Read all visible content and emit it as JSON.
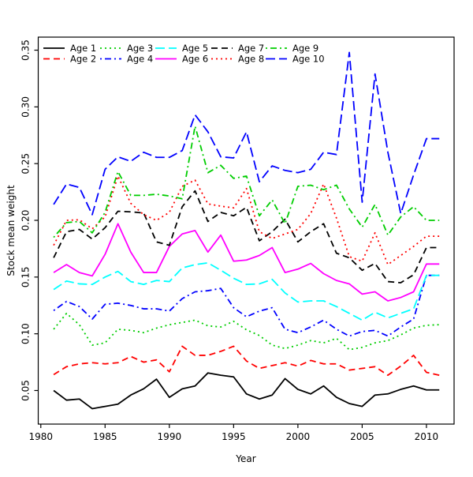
{
  "chart_data": {
    "type": "line",
    "title": "",
    "xlabel": "Year",
    "ylabel": "Stock mean weight",
    "x_ticks": [
      1980,
      1985,
      1990,
      1995,
      2000,
      2005,
      2010
    ],
    "y_tick_labels": [
      "0.05",
      "0.10",
      "0.15",
      "0.20",
      "0.25",
      "0.30",
      "0.35"
    ],
    "y_ticks": [
      0.05,
      0.1,
      0.15,
      0.2,
      0.25,
      0.3,
      0.35
    ],
    "xlim": [
      1979.8,
      2012.15
    ],
    "ylim": [
      0.0204,
      0.3615
    ],
    "grid": false,
    "legend_position": "top-left-inside, 2 rows x 5 columns",
    "x": [
      1981,
      1982,
      1983,
      1984,
      1985,
      1986,
      1987,
      1988,
      1989,
      1990,
      1991,
      1992,
      1993,
      1994,
      1995,
      1996,
      1997,
      1998,
      1999,
      2000,
      2001,
      2002,
      2003,
      2004,
      2005,
      2006,
      2007,
      2008,
      2009,
      2010,
      2011
    ],
    "series": [
      {
        "name": "Age 1",
        "color": "#000000",
        "linestyle": "solid",
        "values": [
          0.05,
          0.0415,
          0.0425,
          0.034,
          0.036,
          0.038,
          0.046,
          0.0515,
          0.06,
          0.044,
          0.0515,
          0.054,
          0.0655,
          0.0635,
          0.062,
          0.047,
          0.0425,
          0.046,
          0.0605,
          0.051,
          0.047,
          0.054,
          0.044,
          0.0385,
          0.036,
          0.046,
          0.047,
          0.051,
          0.054,
          0.0505,
          0.0505
        ]
      },
      {
        "name": "Age 2",
        "color": "#FF0000",
        "linestyle": "dashed",
        "values": [
          0.064,
          0.071,
          0.0735,
          0.0745,
          0.0735,
          0.0745,
          0.08,
          0.075,
          0.077,
          0.0665,
          0.089,
          0.081,
          0.081,
          0.0845,
          0.089,
          0.076,
          0.0695,
          0.072,
          0.0745,
          0.0715,
          0.0765,
          0.0735,
          0.0735,
          0.068,
          0.0695,
          0.071,
          0.0635,
          0.0715,
          0.081,
          0.066,
          0.0635
        ]
      },
      {
        "name": "Age 3",
        "color": "#00CD00",
        "linestyle": "dotted",
        "values": [
          0.104,
          0.118,
          0.108,
          0.09,
          0.092,
          0.104,
          0.103,
          0.101,
          0.105,
          0.108,
          0.11,
          0.112,
          0.107,
          0.106,
          0.111,
          0.1035,
          0.0985,
          0.09,
          0.087,
          0.09,
          0.094,
          0.092,
          0.096,
          0.086,
          0.088,
          0.092,
          0.094,
          0.099,
          0.105,
          0.1075,
          0.108
        ]
      },
      {
        "name": "Age 4",
        "color": "#0000FF",
        "linestyle": "dotdash",
        "values": [
          0.1205,
          0.1285,
          0.124,
          0.113,
          0.126,
          0.127,
          0.125,
          0.122,
          0.122,
          0.12,
          0.131,
          0.137,
          0.138,
          0.14,
          0.123,
          0.115,
          0.12,
          0.123,
          0.104,
          0.101,
          0.106,
          0.112,
          0.104,
          0.098,
          0.102,
          0.103,
          0.098,
          0.106,
          0.113,
          0.1515,
          0.1515
        ]
      },
      {
        "name": "Age 5",
        "color": "#00FFFF",
        "linestyle": "longdash",
        "values": [
          0.139,
          0.1465,
          0.144,
          0.1435,
          0.15,
          0.155,
          0.146,
          0.1435,
          0.147,
          0.146,
          0.158,
          0.161,
          0.1625,
          0.156,
          0.149,
          0.1435,
          0.144,
          0.148,
          0.136,
          0.128,
          0.129,
          0.129,
          0.124,
          0.118,
          0.112,
          0.119,
          0.114,
          0.118,
          0.122,
          0.1515,
          0.1515
        ]
      },
      {
        "name": "Age 6",
        "color": "#FF00FF",
        "linestyle": "solid",
        "values": [
          0.154,
          0.161,
          0.154,
          0.151,
          0.17,
          0.197,
          0.172,
          0.154,
          0.154,
          0.177,
          0.188,
          0.191,
          0.172,
          0.187,
          0.164,
          0.165,
          0.169,
          0.176,
          0.154,
          0.157,
          0.162,
          0.153,
          0.147,
          0.144,
          0.135,
          0.137,
          0.129,
          0.132,
          0.137,
          0.1615,
          0.1615
        ]
      },
      {
        "name": "Age 7",
        "color": "#000000",
        "linestyle": "dashed",
        "values": [
          0.167,
          0.19,
          0.192,
          0.1835,
          0.1935,
          0.208,
          0.2075,
          0.2065,
          0.181,
          0.178,
          0.212,
          0.226,
          0.199,
          0.207,
          0.204,
          0.2115,
          0.182,
          0.19,
          0.201,
          0.181,
          0.19,
          0.197,
          0.171,
          0.167,
          0.156,
          0.162,
          0.146,
          0.145,
          0.152,
          0.176,
          0.176
        ]
      },
      {
        "name": "Age 8",
        "color": "#FF0000",
        "linestyle": "dotted",
        "values": [
          0.178,
          0.2,
          0.2005,
          0.1925,
          0.203,
          0.239,
          0.215,
          0.205,
          0.2,
          0.207,
          0.23,
          0.2355,
          0.2145,
          0.2125,
          0.211,
          0.228,
          0.19,
          0.184,
          0.188,
          0.192,
          0.206,
          0.232,
          0.202,
          0.168,
          0.164,
          0.189,
          0.161,
          0.169,
          0.177,
          0.186,
          0.186
        ]
      },
      {
        "name": "Age 9",
        "color": "#00CD00",
        "linestyle": "dotdash",
        "values": [
          0.185,
          0.198,
          0.199,
          0.189,
          0.207,
          0.243,
          0.222,
          0.222,
          0.223,
          0.2215,
          0.219,
          0.283,
          0.242,
          0.2485,
          0.237,
          0.239,
          0.204,
          0.218,
          0.197,
          0.23,
          0.231,
          0.227,
          0.231,
          0.21,
          0.194,
          0.214,
          0.187,
          0.203,
          0.212,
          0.2,
          0.2
        ]
      },
      {
        "name": "Age 10",
        "color": "#0000FF",
        "linestyle": "longdash",
        "values": [
          0.214,
          0.232,
          0.229,
          0.205,
          0.245,
          0.256,
          0.252,
          0.26,
          0.2555,
          0.2555,
          0.2615,
          0.293,
          0.278,
          0.256,
          0.255,
          0.278,
          0.234,
          0.248,
          0.244,
          0.242,
          0.245,
          0.26,
          0.258,
          0.348,
          0.216,
          0.329,
          0.26,
          0.206,
          0.24,
          0.272,
          0.272
        ]
      }
    ],
    "legend": [
      "Age 1",
      "Age 2",
      "Age 3",
      "Age 4",
      "Age 5",
      "Age 6",
      "Age 7",
      "Age 8",
      "Age 9",
      "Age 10"
    ]
  }
}
